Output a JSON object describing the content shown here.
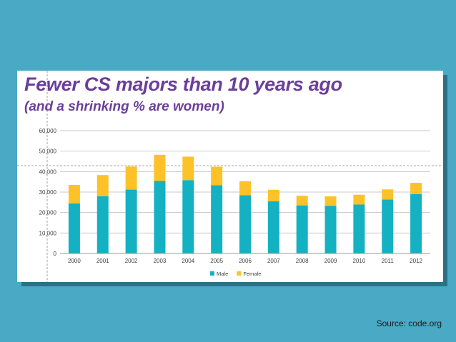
{
  "chart_data": {
    "type": "bar",
    "stacked": true,
    "title": "Fewer CS majors than 10 years ago",
    "subtitle": "(and a shrinking % are women)",
    "categories": [
      "2000",
      "2001",
      "2002",
      "2003",
      "2004",
      "2005",
      "2006",
      "2007",
      "2008",
      "2009",
      "2010",
      "2011",
      "2012"
    ],
    "series": [
      {
        "name": "Male",
        "color": "#14b1c2",
        "values": [
          24500,
          28000,
          31200,
          35500,
          35800,
          33300,
          28500,
          25500,
          23500,
          23300,
          23900,
          26400,
          29000
        ]
      },
      {
        "name": "Female",
        "color": "#fcc227",
        "values": [
          9000,
          10300,
          11300,
          12700,
          11500,
          9100,
          6800,
          5600,
          4700,
          4600,
          4800,
          4900,
          5500
        ]
      }
    ],
    "y_ticks": [
      "0",
      "10,000",
      "20,000",
      "30,000",
      "40,000",
      "50,000",
      "60,000"
    ],
    "ylim": [
      0,
      60000
    ],
    "grid": true,
    "legend_position": "bottom"
  },
  "source_text": "Source: code.org"
}
